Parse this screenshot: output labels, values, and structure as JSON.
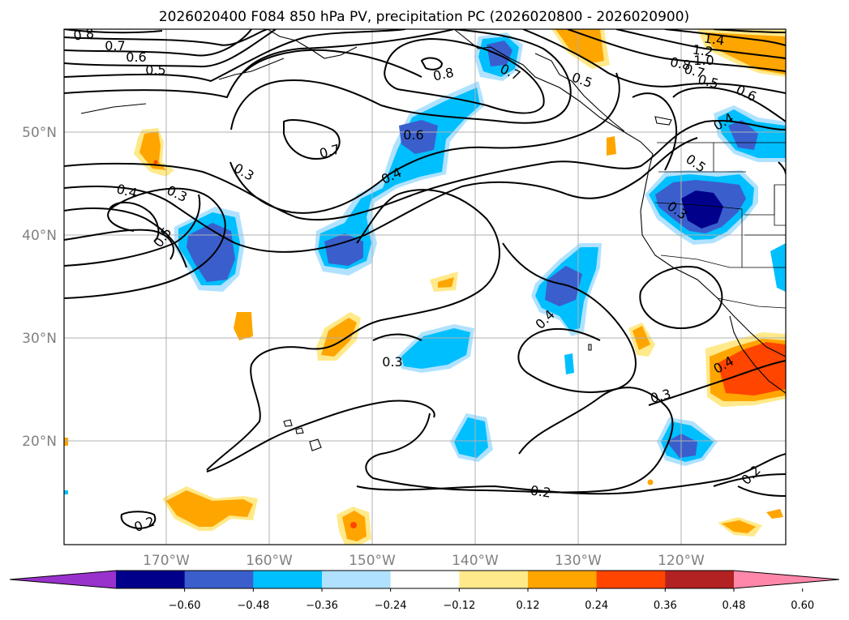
{
  "title": "2026020400 F084 850 hPa PV, precipitation PC (2026020800 - 2026020900)",
  "lat_ticks": [
    "50°N",
    "40°N",
    "30°N",
    "20°N"
  ],
  "lon_ticks": [
    "170°W",
    "160°W",
    "150°W",
    "140°W",
    "130°W",
    "120°W"
  ],
  "colorbar": {
    "colors": [
      "#9932cc",
      "#00008b",
      "#3a5fcd",
      "#00bfff",
      "#b0e2ff",
      "#ffffff",
      "#ffe98a",
      "#ffa500",
      "#ff4500",
      "#b22222",
      "#ff88aa"
    ],
    "tick_labels": [
      "−0.60",
      "−0.48",
      "−0.36",
      "−0.24",
      "−0.12",
      "0.12",
      "0.24",
      "0.36",
      "0.48",
      "0.60"
    ]
  },
  "contour_labels": [
    "0.8",
    "0.7",
    "0.6",
    "0.5",
    "0.8",
    "0.7",
    "0.5",
    "0.6",
    "0.7",
    "0.3",
    "0.4",
    "0.3",
    "0.4",
    "0.5",
    "1.4",
    "1.2",
    "1.0",
    "0.8",
    "0.7",
    "0.5",
    "0.6",
    "0.4",
    "0.5",
    "0.3",
    "0.4",
    "0.3",
    "0.4",
    "0.3",
    "0.2",
    "0.2",
    "0.2"
  ]
}
